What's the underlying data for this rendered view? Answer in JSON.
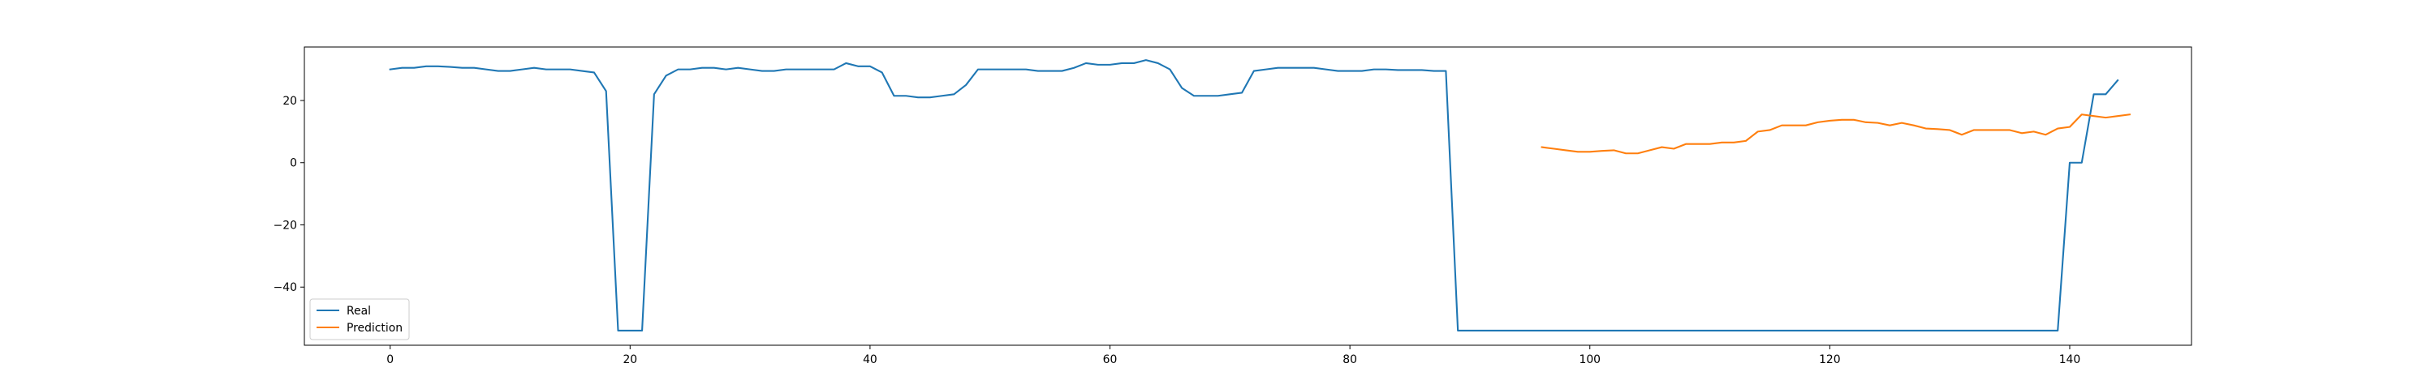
{
  "chart_data": {
    "type": "line",
    "title": "",
    "xlabel": "",
    "ylabel": "",
    "xlim": [
      -7.15,
      150.15
    ],
    "ylim": [
      -58.7,
      37.2
    ],
    "x_ticks": [
      0,
      20,
      40,
      60,
      80,
      100,
      120,
      140
    ],
    "x_tick_labels": [
      "0",
      "20",
      "40",
      "60",
      "80",
      "100",
      "120",
      "140"
    ],
    "y_ticks": [
      -40,
      -20,
      0,
      20
    ],
    "y_tick_labels": [
      "−40",
      "−20",
      "0",
      "20"
    ],
    "grid": false,
    "legend_position": "lower-left",
    "series": [
      {
        "name": "Real",
        "color": "#1f77b4",
        "x_start": 0,
        "values": [
          30,
          30.5,
          30.5,
          31,
          31,
          30.8,
          30.5,
          30.5,
          30,
          29.5,
          29.5,
          30,
          30.5,
          30,
          30,
          30,
          29.5,
          29,
          23,
          -54,
          -54,
          -54,
          22,
          28,
          30,
          30,
          30.5,
          30.5,
          30,
          30.5,
          30,
          29.5,
          29.5,
          30,
          30,
          30,
          30,
          30,
          32,
          31,
          31,
          29,
          21.5,
          21.5,
          21,
          21,
          21.5,
          22,
          25,
          30,
          30,
          30,
          30,
          30,
          29.5,
          29.5,
          29.5,
          30.5,
          32,
          31.5,
          31.5,
          32,
          32,
          33,
          32,
          30,
          24,
          21.5,
          21.5,
          21.5,
          22,
          22.5,
          29.5,
          30,
          30.5,
          30.5,
          30.5,
          30.5,
          30,
          29.5,
          29.5,
          29.5,
          30,
          30,
          29.8,
          29.8,
          29.8,
          29.5,
          29.5,
          -54,
          -54,
          -54,
          -54,
          -54,
          -54,
          -54,
          -54,
          -54,
          -54,
          -54,
          -54,
          -54,
          -54,
          -54,
          -54,
          -54,
          -54,
          -54,
          -54,
          -54,
          -54,
          -54,
          -54,
          -54,
          -54,
          -54,
          -54,
          -54,
          -54,
          -54,
          -54,
          -54,
          -54,
          -54,
          -54,
          -54,
          -54,
          -54,
          -54,
          -54,
          -54,
          -54,
          -54,
          -54,
          -54,
          -54,
          -54,
          -54,
          -54,
          -54,
          0,
          0,
          22,
          22,
          26.5
        ]
      },
      {
        "name": "Prediction",
        "color": "#ff7f0e",
        "x_start": 96,
        "values": [
          5,
          4.5,
          4,
          3.5,
          3.5,
          3.8,
          4,
          3,
          3,
          4,
          5,
          4.5,
          6,
          6,
          6,
          6.5,
          6.5,
          7,
          10,
          10.5,
          12,
          12,
          12,
          13,
          13.5,
          13.8,
          13.8,
          13,
          12.8,
          12,
          12.8,
          12,
          11,
          10.8,
          10.5,
          9,
          10.5,
          10.5,
          10.5,
          10.5,
          9.5,
          10,
          9,
          11,
          11.5,
          15.5,
          15,
          14.5,
          15,
          15.5
        ]
      }
    ]
  }
}
